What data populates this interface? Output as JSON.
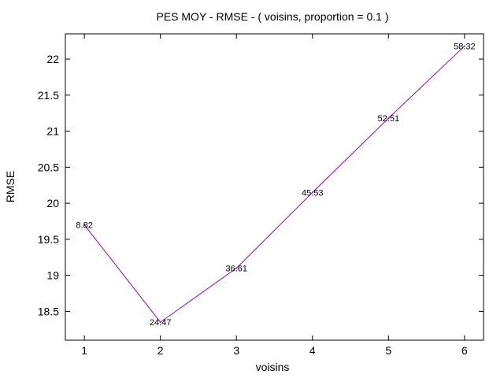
{
  "chart_data": {
    "type": "line",
    "title": "PES MOY - RMSE - ( voisins, proportion = 0.1 )",
    "xlabel": "voisins",
    "ylabel": "RMSE",
    "xlim": [
      0.75,
      6.25
    ],
    "ylim": [
      18.1,
      22.35
    ],
    "xticks": [
      "1",
      "2",
      "3",
      "4",
      "5",
      "6"
    ],
    "yticks": [
      "18.5",
      "19",
      "19.5",
      "20",
      "20.5",
      "21",
      "21.5",
      "22"
    ],
    "grid": false,
    "series": [
      {
        "color": "#9900cc",
        "x": [
          1,
          2,
          3,
          4,
          5,
          6
        ],
        "y": [
          19.7,
          18.35,
          19.1,
          20.15,
          21.18,
          22.18
        ],
        "point_labels": [
          "8.82",
          "24.47",
          "36.61",
          "45.53",
          "52.51",
          "58.32"
        ]
      }
    ]
  }
}
